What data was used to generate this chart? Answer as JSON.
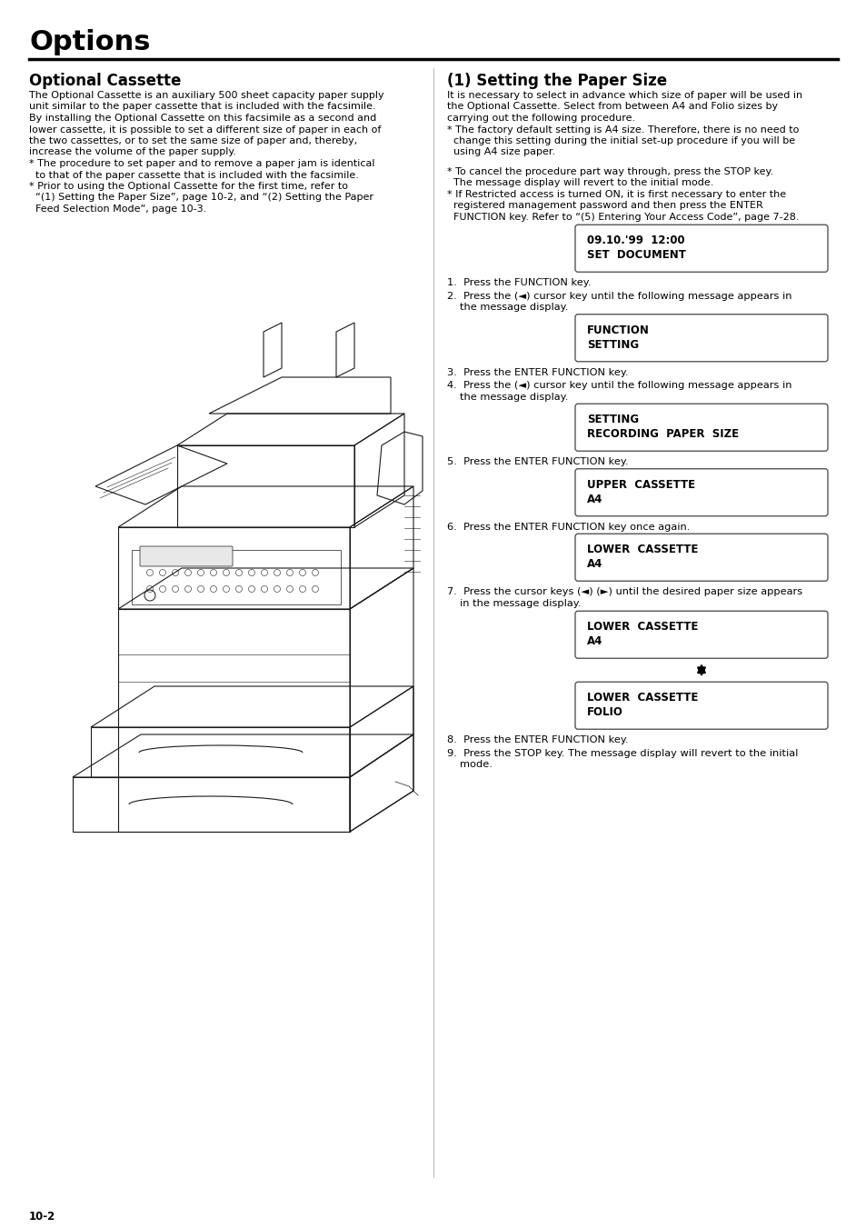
{
  "page_title": "Options",
  "left_section_title": "Optional Cassette",
  "left_body_para1": "The Optional Cassette is an auxiliary 500 sheet capacity paper supply unit similar to the paper cassette that is included with the facsimile. By installing the Optional Cassette on this facsimile as a second and lower cassette, it is possible to set a different size of paper in each of the two cassettes, or to set the same size of paper and, thereby, increase the volume of the paper supply.",
  "left_body_bullets": [
    "* The procedure to set paper and to remove a paper jam is identical\n  to that of the paper cassette that is included with the facsimile.",
    "* Prior to using the Optional Cassette for the first time, refer to\n  “(1) Setting the Paper Size”, page 10-2, and “(2) Setting the Paper\n  Feed Selection Mode”, page 10-3."
  ],
  "right_section_title": "(1) Setting the Paper Size",
  "right_intro_para1": "It is necessary to select in advance which size of paper will be used in the Optional Cassette. Select from between A4 and Folio sizes by carrying out the following procedure.",
  "right_intro_bullet1": "* The factory default setting is A4 size. Therefore, there is no need to change this setting during the initial set-up procedure if you will be using A4 size paper.",
  "right_intro_bullet2": "* To cancel the procedure part way through, press the STOP key.\n  The message display will revert to the initial mode.",
  "right_intro_bullet3": "* If Restricted access is turned ON, it is first necessary to enter the registered management password and then press the ENTER FUNCTION key. Refer to “(5) Entering Your Access Code”, page 7-28.",
  "box1_lines": [
    "09.10.'99  12:00",
    "SET  DOCUMENT"
  ],
  "step1": "1.  Press the FUNCTION key.",
  "step2a": "2.  Press the (◄) cursor key until the following message appears in",
  "step2b": "    the message display.",
  "box2_lines": [
    "FUNCTION",
    "SETTING"
  ],
  "step3": "3.  Press the ENTER FUNCTION key.",
  "step4a": "4.  Press the (◄) cursor key until the following message appears in",
  "step4b": "    the message display.",
  "box3_lines": [
    "SETTING",
    "RECORDING  PAPER  SIZE"
  ],
  "step5": "5.  Press the ENTER FUNCTION key.",
  "box4_lines": [
    "UPPER  CASSETTE",
    "A4"
  ],
  "step6": "6.  Press the ENTER FUNCTION key once again.",
  "box5_lines": [
    "LOWER  CASSETTE",
    "A4"
  ],
  "step7a": "7.  Press the cursor keys (◄) (►) until the desired paper size appears",
  "step7b": "    in the message display.",
  "box6_lines": [
    "LOWER  CASSETTE",
    "A4"
  ],
  "box7_lines": [
    "LOWER  CASSETTE",
    "FOLIO"
  ],
  "step8": "8.  Press the ENTER FUNCTION key.",
  "step9a": "9.  Press the STOP key. The message display will revert to the initial",
  "step9b": "    mode.",
  "page_number": "10-2",
  "bg_color": "#ffffff",
  "text_color": "#000000"
}
